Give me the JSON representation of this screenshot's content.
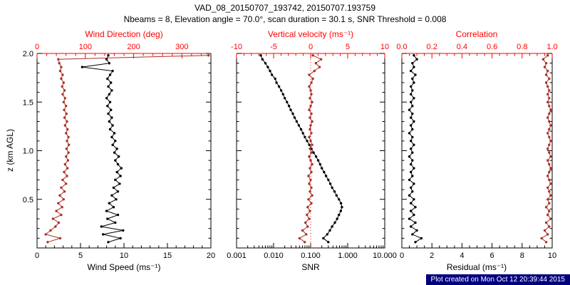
{
  "title": "VAD_08_20150707_193742, 20150707.193759",
  "subtitle": "Nbeams = 8, Elevation angle = 70.0°, scan duration = 30.1 s, SNR Threshold = 0.008",
  "footer": "Plot created on Mon Oct 12 20:39:44 2015",
  "ylabel": "z (km AGL)",
  "colors": {
    "axis_accent": "#ff0000",
    "series_black": "#000000",
    "series_red": "#a93226",
    "footer_bg": "#00007f",
    "footer_text": "#ffffff"
  },
  "z_km": [
    0.06,
    0.1,
    0.14,
    0.18,
    0.22,
    0.26,
    0.3,
    0.34,
    0.38,
    0.42,
    0.46,
    0.5,
    0.54,
    0.58,
    0.62,
    0.66,
    0.7,
    0.74,
    0.78,
    0.82,
    0.86,
    0.9,
    0.94,
    0.98,
    1.02,
    1.06,
    1.1,
    1.14,
    1.18,
    1.22,
    1.26,
    1.3,
    1.34,
    1.38,
    1.42,
    1.46,
    1.5,
    1.54,
    1.58,
    1.62,
    1.66,
    1.7,
    1.74,
    1.78,
    1.82,
    1.86,
    1.9,
    1.94,
    1.98
  ],
  "chart_data": [
    {
      "type": "line",
      "name": "wind-profile-panel",
      "y_axis": {
        "label": "z (km AGL)",
        "lim": [
          0,
          2
        ],
        "ticks": [
          0.5,
          1.0,
          1.5,
          2.0
        ],
        "tick_labels": [
          "0.5",
          "1.0",
          "1.5",
          "2.0"
        ],
        "minor": 0.1,
        "show_labels": true
      },
      "bottom_axis": {
        "label": "Wind Speed (ms⁻¹)",
        "scale": "linear",
        "lim": [
          0,
          20
        ],
        "ticks": [
          0,
          5,
          10,
          15,
          20
        ],
        "tick_labels": [
          "0",
          "5",
          "10",
          "15",
          "20"
        ],
        "minor": 1
      },
      "top_axis": {
        "label": "Wind Direction (deg)",
        "scale": "linear",
        "lim": [
          0,
          360
        ],
        "ticks": [
          0,
          100,
          200,
          300
        ],
        "tick_labels": [
          "0",
          "100",
          "200",
          "300"
        ],
        "minor": 20
      },
      "series": [
        {
          "name": "wind-speed",
          "axis": "bottom",
          "color": "black",
          "values": [
            8.2,
            9.6,
            7.6,
            9.9,
            7.4,
            9.0,
            8.1,
            9.3,
            8.0,
            8.8,
            8.3,
            9.1,
            8.6,
            9.3,
            8.8,
            9.5,
            9.0,
            9.6,
            9.2,
            9.7,
            9.3,
            9.0,
            9.4,
            8.9,
            9.2,
            8.7,
            9.0,
            8.6,
            8.9,
            8.4,
            8.7,
            8.3,
            8.6,
            8.2,
            8.5,
            8.1,
            8.4,
            8.0,
            8.3,
            8.6,
            8.2,
            8.5,
            8.1,
            8.4,
            8.7,
            5.2,
            8.3,
            8.0,
            8.2
          ]
        },
        {
          "name": "wind-direction",
          "axis": "top",
          "color": "red",
          "values": [
            22,
            48,
            18,
            28,
            38,
            45,
            33,
            50,
            40,
            52,
            44,
            55,
            47,
            57,
            50,
            60,
            53,
            62,
            56,
            63,
            58,
            64,
            60,
            65,
            61,
            66,
            62,
            65,
            60,
            63,
            58,
            62,
            57,
            61,
            56,
            60,
            55,
            58,
            53,
            57,
            52,
            55,
            50,
            53,
            48,
            50,
            46,
            44,
            355
          ]
        }
      ]
    },
    {
      "type": "line",
      "name": "snr-panel",
      "y_axis": {
        "label": "",
        "lim": [
          0,
          2
        ],
        "ticks": [
          0.5,
          1.0,
          1.5,
          2.0
        ],
        "tick_labels": [
          "0.5",
          "1.0",
          "1.5",
          "2.0"
        ],
        "minor": 0.1,
        "show_labels": false
      },
      "bottom_axis": {
        "label": "SNR",
        "scale": "log",
        "lim": [
          0.001,
          10
        ],
        "ticks": [
          0.001,
          0.01,
          0.1,
          1,
          10
        ],
        "tick_labels": [
          "0.001",
          "0.010",
          "0.100",
          "1.000",
          "10.000"
        ]
      },
      "top_axis": {
        "label": "Vertical velocity (ms⁻¹)",
        "scale": "linear",
        "lim": [
          -10,
          10
        ],
        "ticks": [
          -10,
          -5,
          0,
          5,
          10
        ],
        "tick_labels": [
          "-10",
          "-5",
          "0",
          "5",
          "10"
        ],
        "minor": 1
      },
      "ref_line": {
        "axis": "top",
        "value": 0
      },
      "series": [
        {
          "name": "snr",
          "axis": "bottom",
          "color": "black",
          "values": [
            0.3,
            0.22,
            0.28,
            0.33,
            0.38,
            0.45,
            0.52,
            0.58,
            0.65,
            0.7,
            0.66,
            0.58,
            0.5,
            0.44,
            0.38,
            0.34,
            0.3,
            0.26,
            0.23,
            0.2,
            0.18,
            0.16,
            0.14,
            0.12,
            0.105,
            0.092,
            0.08,
            0.07,
            0.062,
            0.055,
            0.048,
            0.042,
            0.037,
            0.033,
            0.029,
            0.026,
            0.023,
            0.02,
            0.018,
            0.016,
            0.014,
            0.012,
            0.011,
            0.009,
            0.008,
            0.007,
            0.006,
            0.005,
            0.0045
          ]
        },
        {
          "name": "vertical-velocity",
          "axis": "top",
          "color": "red",
          "values": [
            -0.8,
            -1.5,
            -0.6,
            -1.1,
            -0.4,
            -0.7,
            -0.2,
            -0.5,
            -0.1,
            -0.4,
            0.1,
            -0.3,
            0.2,
            -0.1,
            0.1,
            -0.2,
            0.0,
            -0.3,
            0.1,
            -0.1,
            0.2,
            0.0,
            -0.2,
            0.1,
            -0.1,
            0.2,
            0.0,
            -0.2,
            0.1,
            -0.1,
            0.0,
            0.2,
            -0.1,
            0.1,
            -0.2,
            0.0,
            0.2,
            -0.1,
            0.1,
            0.0,
            -0.2,
            0.1,
            0.3,
            -0.2,
            0.5,
            1.2,
            0.7,
            1.4,
            0.3
          ]
        }
      ]
    },
    {
      "type": "line",
      "name": "residual-panel",
      "y_axis": {
        "label": "",
        "lim": [
          0,
          2
        ],
        "ticks": [
          0.5,
          1.0,
          1.5,
          2.0
        ],
        "tick_labels": [
          "0.5",
          "1.0",
          "1.5",
          "2.0"
        ],
        "minor": 0.1,
        "show_labels": false
      },
      "bottom_axis": {
        "label": "Residual (ms⁻¹)",
        "scale": "linear",
        "lim": [
          0,
          10
        ],
        "ticks": [
          0,
          2,
          4,
          6,
          8,
          10
        ],
        "tick_labels": [
          "0",
          "2",
          "4",
          "6",
          "8",
          "10"
        ],
        "minor": 0.5
      },
      "top_axis": {
        "label": "Correlation",
        "scale": "linear",
        "lim": [
          0,
          1
        ],
        "ticks": [
          0.0,
          0.2,
          0.4,
          0.6,
          0.8,
          1.0
        ],
        "tick_labels": [
          "0.0",
          "0.2",
          "0.4",
          "0.6",
          "0.8",
          "1.0"
        ],
        "minor": 0.05
      },
      "series": [
        {
          "name": "residual",
          "axis": "bottom",
          "color": "black",
          "values": [
            0.9,
            1.3,
            0.7,
            1.0,
            0.6,
            0.9,
            0.5,
            0.8,
            0.6,
            0.9,
            0.6,
            0.8,
            0.5,
            0.7,
            0.6,
            0.8,
            0.5,
            0.7,
            0.6,
            0.8,
            0.6,
            0.7,
            0.5,
            0.7,
            0.6,
            0.8,
            0.6,
            0.7,
            0.5,
            0.7,
            0.6,
            0.8,
            0.6,
            0.7,
            0.5,
            0.7,
            0.6,
            0.8,
            0.6,
            0.7,
            0.6,
            0.8,
            0.7,
            0.9,
            0.6,
            0.8,
            0.7,
            1.0,
            0.8
          ]
        },
        {
          "name": "correlation",
          "axis": "top",
          "color": "red",
          "values": [
            0.96,
            0.93,
            0.97,
            0.95,
            0.98,
            0.96,
            0.99,
            0.97,
            0.98,
            0.96,
            0.98,
            0.97,
            0.99,
            0.98,
            0.97,
            0.99,
            0.98,
            0.97,
            0.98,
            0.99,
            0.98,
            0.97,
            0.99,
            0.98,
            0.97,
            0.98,
            0.99,
            0.98,
            0.97,
            0.98,
            0.99,
            0.98,
            0.97,
            0.98,
            0.99,
            0.98,
            0.97,
            0.98,
            0.97,
            0.98,
            0.97,
            0.96,
            0.98,
            0.96,
            0.97,
            0.95,
            0.96,
            0.94,
            0.97
          ]
        }
      ]
    }
  ]
}
